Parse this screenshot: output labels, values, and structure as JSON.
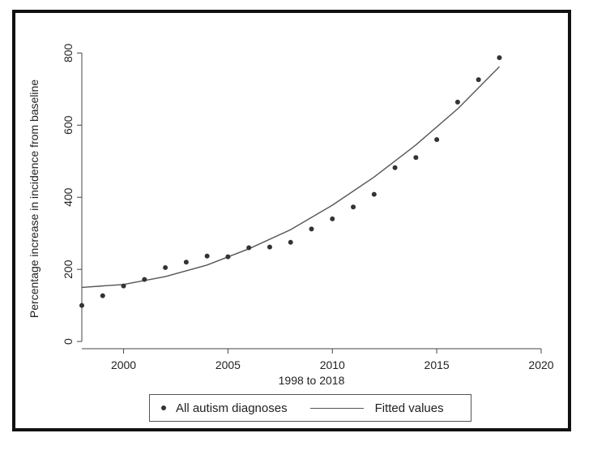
{
  "chart_data": {
    "type": "scatter",
    "xlabel": "1998 to 2018",
    "ylabel": "Percentage increase in incidence from baseline",
    "xlim": [
      1998,
      2020
    ],
    "ylim": [
      -20,
      830
    ],
    "xticks": [
      2000,
      2005,
      2010,
      2015,
      2020
    ],
    "yticks": [
      0,
      200,
      400,
      600,
      800
    ],
    "grid": false,
    "legend_position": "bottom",
    "series": [
      {
        "name": "All autism diagnoses",
        "kind": "scatter",
        "color": "#333333",
        "x": [
          1998,
          1999,
          2000,
          2001,
          2002,
          2003,
          2004,
          2005,
          2006,
          2007,
          2008,
          2009,
          2010,
          2011,
          2012,
          2013,
          2014,
          2015,
          2016,
          2017,
          2018
        ],
        "y": [
          100,
          127,
          154,
          172,
          205,
          220,
          237,
          235,
          260,
          262,
          275,
          312,
          340,
          373,
          408,
          482,
          510,
          560,
          664,
          726,
          787
        ]
      },
      {
        "name": "Fitted values",
        "kind": "line",
        "color": "#555555",
        "x": [
          1998,
          2000,
          2002,
          2004,
          2006,
          2008,
          2010,
          2012,
          2014,
          2016,
          2018
        ],
        "y": [
          150,
          158,
          180,
          212,
          257,
          310,
          378,
          456,
          545,
          645,
          762
        ]
      }
    ]
  }
}
